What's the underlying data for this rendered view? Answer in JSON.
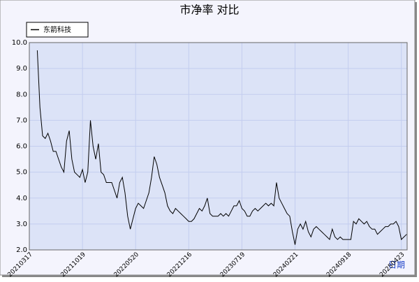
{
  "chart_data": {
    "type": "line",
    "title": "市净率 对比",
    "x_label": "日期",
    "categories": [
      "20210317",
      null,
      null,
      null,
      null,
      null,
      null,
      null,
      null,
      null,
      null,
      null,
      null,
      null,
      null,
      null,
      null,
      null,
      null,
      null,
      "20211019",
      null,
      null,
      null,
      null,
      null,
      null,
      null,
      null,
      null,
      null,
      null,
      null,
      null,
      null,
      null,
      null,
      null,
      null,
      null,
      "20220520",
      null,
      null,
      null,
      null,
      null,
      null,
      null,
      null,
      null,
      null,
      null,
      null,
      null,
      null,
      null,
      null,
      null,
      null,
      null,
      "20221216",
      null,
      null,
      null,
      null,
      null,
      null,
      null,
      null,
      null,
      null,
      null,
      null,
      null,
      null,
      null,
      null,
      null,
      null,
      null,
      "20230719",
      null,
      null,
      null,
      null,
      null,
      null,
      null,
      null,
      null,
      null,
      null,
      null,
      null,
      null,
      null,
      null,
      null,
      null,
      null,
      "20240221",
      null,
      null,
      null,
      null,
      null,
      null,
      null,
      null,
      null,
      null,
      null,
      null,
      null,
      null,
      null,
      null,
      null,
      null,
      null,
      "20240918",
      null,
      null,
      null,
      null,
      null,
      null,
      null,
      null,
      null,
      null,
      null,
      null,
      null,
      null,
      null,
      null,
      null,
      null,
      null,
      "20250423",
      null,
      null
    ],
    "series": [
      {
        "name": "东箭科技",
        "color": "#000000",
        "values": [
          null,
          null,
          null,
          9.7,
          7.5,
          6.4,
          6.3,
          6.5,
          6.2,
          5.8,
          5.8,
          5.5,
          5.2,
          5.0,
          6.2,
          6.6,
          5.5,
          5.0,
          4.9,
          4.8,
          5.1,
          4.6,
          5.0,
          7.0,
          6.0,
          5.5,
          6.1,
          5.0,
          4.9,
          4.6,
          4.6,
          4.6,
          4.3,
          4.0,
          4.6,
          4.8,
          4.2,
          3.3,
          2.8,
          3.2,
          3.6,
          3.8,
          3.7,
          3.6,
          3.9,
          4.2,
          4.8,
          5.6,
          5.3,
          4.8,
          4.5,
          4.2,
          3.7,
          3.5,
          3.4,
          3.6,
          3.5,
          3.4,
          3.3,
          3.2,
          3.1,
          3.1,
          3.2,
          3.4,
          3.6,
          3.5,
          3.7,
          4.0,
          3.4,
          3.3,
          3.3,
          3.3,
          3.4,
          3.3,
          3.4,
          3.3,
          3.5,
          3.7,
          3.7,
          3.9,
          3.6,
          3.5,
          3.3,
          3.3,
          3.5,
          3.6,
          3.5,
          3.6,
          3.7,
          3.8,
          3.7,
          3.8,
          3.7,
          4.6,
          4.0,
          3.8,
          3.6,
          3.4,
          3.3,
          2.7,
          2.2,
          2.8,
          3.0,
          2.8,
          3.1,
          2.7,
          2.5,
          2.8,
          2.9,
          2.8,
          2.7,
          2.6,
          2.5,
          2.4,
          2.8,
          2.5,
          2.4,
          2.5,
          2.4,
          2.4,
          2.4,
          2.4,
          3.1,
          3.0,
          3.2,
          3.1,
          3.0,
          3.1,
          2.9,
          2.8,
          2.8,
          2.6,
          2.7,
          2.8,
          2.9,
          2.9,
          3.0,
          3.0,
          3.1,
          2.9,
          2.4,
          2.5,
          2.6
        ]
      }
    ],
    "ylim": [
      2,
      10
    ],
    "yticks": [
      {
        "value": 2,
        "label": "2.0"
      },
      {
        "value": 3,
        "label": "3.0"
      },
      {
        "value": 4,
        "label": "4.0"
      },
      {
        "value": 5,
        "label": "5.0"
      },
      {
        "value": 6,
        "label": "6.0"
      },
      {
        "value": 7,
        "label": "7.0"
      },
      {
        "value": 8,
        "label": "8.0"
      },
      {
        "value": 9,
        "label": "9.0"
      },
      {
        "value": 10,
        "label": "10.0"
      }
    ],
    "grid": true
  }
}
